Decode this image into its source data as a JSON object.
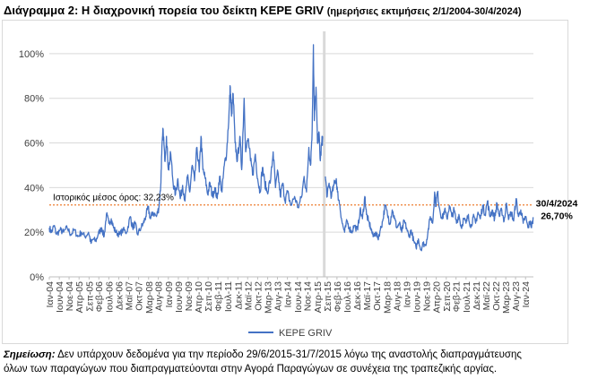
{
  "title": {
    "main": "Διάγραμμα 2: Η διαχρονική πορεία του δείκτη ΚΕΡΕ GRIV",
    "sub": "(ημερήσιες εκτιμήσεις 2/1/2004-30/4/2024)"
  },
  "note": {
    "label": "Σημείωση:",
    "text_line1": "Δεν υπάρχουν δεδομένα για την περίοδο 29/6/2015-31/7/2015 λόγω της αναστολής διαπραγμάτευσης",
    "text_line2": "όλων των παραγώγων που διαπραγματεύονται στην Αγορά Παραγώγων σε συνέχεια της τραπεζικής αργίας."
  },
  "colors": {
    "series": "#4472c4",
    "mean_line": "#ed7d31",
    "gap_band": "#d9d9d9",
    "grid": "#d9d9d9"
  },
  "chart_data": {
    "type": "line",
    "title": "Διάγραμμα 2: Η διαχρονική πορεία του δείκτη ΚΕΡΕ GRIV",
    "xlabel": "",
    "ylabel": "",
    "ylim": [
      0,
      1.1
    ],
    "yticks": [
      "0%",
      "20%",
      "40%",
      "60%",
      "80%",
      "100%"
    ],
    "ytick_values": [
      0,
      0.2,
      0.4,
      0.6,
      0.8,
      1.0
    ],
    "x_range": [
      2004.0,
      2024.33
    ],
    "x_ticks": [
      {
        "label": "Ιαν-04",
        "t": 2004.0
      },
      {
        "label": "Ιουν-04",
        "t": 2004.42
      },
      {
        "label": "Νοε-04",
        "t": 2004.83
      },
      {
        "label": "Απρ-05",
        "t": 2005.25
      },
      {
        "label": "Σεπ-05",
        "t": 2005.67
      },
      {
        "label": "Φεβ-06",
        "t": 2006.08
      },
      {
        "label": "Ιουλ-06",
        "t": 2006.5
      },
      {
        "label": "Δεκ-06",
        "t": 2006.92
      },
      {
        "label": "Μαϊ-07",
        "t": 2007.33
      },
      {
        "label": "Οκτ-07",
        "t": 2007.75
      },
      {
        "label": "Μαρ-08",
        "t": 2008.17
      },
      {
        "label": "Αυγ-08",
        "t": 2008.58
      },
      {
        "label": "Ιαν-09",
        "t": 2009.0
      },
      {
        "label": "Ιουν-09",
        "t": 2009.42
      },
      {
        "label": "Νοε-09",
        "t": 2009.83
      },
      {
        "label": "Απρ-10",
        "t": 2010.25
      },
      {
        "label": "Σεπ-10",
        "t": 2010.67
      },
      {
        "label": "Φεβ-11",
        "t": 2011.08
      },
      {
        "label": "Ιουλ-11",
        "t": 2011.5
      },
      {
        "label": "Δεκ-11",
        "t": 2011.92
      },
      {
        "label": "Μαϊ-12",
        "t": 2012.33
      },
      {
        "label": "Οκτ-12",
        "t": 2012.75
      },
      {
        "label": "Μαρ-13",
        "t": 2013.17
      },
      {
        "label": "Αυγ-13",
        "t": 2013.58
      },
      {
        "label": "Ιαν-14",
        "t": 2014.0
      },
      {
        "label": "Ιουν-14",
        "t": 2014.42
      },
      {
        "label": "Νοε-14",
        "t": 2014.83
      },
      {
        "label": "Απρ-15",
        "t": 2015.25
      },
      {
        "label": "Σεπ-15",
        "t": 2015.67
      },
      {
        "label": "Φεβ-16",
        "t": 2016.08
      },
      {
        "label": "Ιουλ-16",
        "t": 2016.5
      },
      {
        "label": "Δεκ-16",
        "t": 2016.92
      },
      {
        "label": "Μαϊ-17",
        "t": 2017.33
      },
      {
        "label": "Οκτ-17",
        "t": 2017.75
      },
      {
        "label": "Μαρ-18",
        "t": 2018.17
      },
      {
        "label": "Αυγ-18",
        "t": 2018.58
      },
      {
        "label": "Ιαν-19",
        "t": 2019.0
      },
      {
        "label": "Ιουν-19",
        "t": 2019.42
      },
      {
        "label": "Νοε-19",
        "t": 2019.83
      },
      {
        "label": "Απρ-20",
        "t": 2020.25
      },
      {
        "label": "Σεπ-20",
        "t": 2020.67
      },
      {
        "label": "Φεβ-21",
        "t": 2021.08
      },
      {
        "label": "Ιουλ-21",
        "t": 2021.5
      },
      {
        "label": "Δεκ-21",
        "t": 2021.92
      },
      {
        "label": "Μαϊ-22",
        "t": 2022.33
      },
      {
        "label": "Οκτ-22",
        "t": 2022.75
      },
      {
        "label": "Μαρ-23",
        "t": 2023.17
      },
      {
        "label": "Αυγ-23",
        "t": 2023.58
      },
      {
        "label": "Ιαν-24",
        "t": 2024.0
      }
    ],
    "gap": {
      "from": 2015.49,
      "to": 2015.58
    },
    "series": [
      {
        "name": "ΚΕΡΕ GRIV",
        "points": [
          [
            2004.0,
            0.22
          ],
          [
            2004.1,
            0.2
          ],
          [
            2004.2,
            0.23
          ],
          [
            2004.3,
            0.19
          ],
          [
            2004.45,
            0.21
          ],
          [
            2004.6,
            0.2
          ],
          [
            2004.75,
            0.22
          ],
          [
            2004.9,
            0.19
          ],
          [
            2005.05,
            0.21
          ],
          [
            2005.2,
            0.18
          ],
          [
            2005.35,
            0.2
          ],
          [
            2005.5,
            0.18
          ],
          [
            2005.65,
            0.2
          ],
          [
            2005.75,
            0.15
          ],
          [
            2005.85,
            0.17
          ],
          [
            2005.95,
            0.16
          ],
          [
            2006.05,
            0.19
          ],
          [
            2006.2,
            0.22
          ],
          [
            2006.3,
            0.18
          ],
          [
            2006.4,
            0.28
          ],
          [
            2006.5,
            0.24
          ],
          [
            2006.6,
            0.26
          ],
          [
            2006.7,
            0.22
          ],
          [
            2006.8,
            0.2
          ],
          [
            2006.95,
            0.19
          ],
          [
            2007.1,
            0.21
          ],
          [
            2007.25,
            0.2
          ],
          [
            2007.4,
            0.27
          ],
          [
            2007.5,
            0.22
          ],
          [
            2007.6,
            0.24
          ],
          [
            2007.7,
            0.19
          ],
          [
            2007.85,
            0.22
          ],
          [
            2007.95,
            0.24
          ],
          [
            2008.05,
            0.27
          ],
          [
            2008.15,
            0.31
          ],
          [
            2008.25,
            0.26
          ],
          [
            2008.35,
            0.29
          ],
          [
            2008.5,
            0.27
          ],
          [
            2008.6,
            0.31
          ],
          [
            2008.68,
            0.41
          ],
          [
            2008.72,
            0.55
          ],
          [
            2008.78,
            0.66
          ],
          [
            2008.85,
            0.52
          ],
          [
            2008.92,
            0.63
          ],
          [
            2009.0,
            0.48
          ],
          [
            2009.1,
            0.55
          ],
          [
            2009.2,
            0.42
          ],
          [
            2009.3,
            0.37
          ],
          [
            2009.4,
            0.44
          ],
          [
            2009.5,
            0.35
          ],
          [
            2009.6,
            0.41
          ],
          [
            2009.7,
            0.34
          ],
          [
            2009.8,
            0.45
          ],
          [
            2009.9,
            0.38
          ],
          [
            2010.0,
            0.5
          ],
          [
            2010.1,
            0.43
          ],
          [
            2010.2,
            0.58
          ],
          [
            2010.3,
            0.47
          ],
          [
            2010.37,
            0.63
          ],
          [
            2010.45,
            0.48
          ],
          [
            2010.55,
            0.44
          ],
          [
            2010.65,
            0.37
          ],
          [
            2010.75,
            0.42
          ],
          [
            2010.85,
            0.36
          ],
          [
            2010.95,
            0.4
          ],
          [
            2011.05,
            0.35
          ],
          [
            2011.15,
            0.45
          ],
          [
            2011.25,
            0.38
          ],
          [
            2011.35,
            0.5
          ],
          [
            2011.45,
            0.56
          ],
          [
            2011.55,
            0.74
          ],
          [
            2011.6,
            0.85
          ],
          [
            2011.65,
            0.72
          ],
          [
            2011.72,
            0.82
          ],
          [
            2011.8,
            0.6
          ],
          [
            2011.9,
            0.52
          ],
          [
            2012.0,
            0.63
          ],
          [
            2012.08,
            0.48
          ],
          [
            2012.18,
            0.8
          ],
          [
            2012.25,
            0.56
          ],
          [
            2012.35,
            0.62
          ],
          [
            2012.45,
            0.52
          ],
          [
            2012.55,
            0.46
          ],
          [
            2012.65,
            0.55
          ],
          [
            2012.75,
            0.44
          ],
          [
            2012.85,
            0.38
          ],
          [
            2012.95,
            0.49
          ],
          [
            2013.05,
            0.42
          ],
          [
            2013.15,
            0.38
          ],
          [
            2013.3,
            0.44
          ],
          [
            2013.4,
            0.56
          ],
          [
            2013.5,
            0.4
          ],
          [
            2013.6,
            0.47
          ],
          [
            2013.7,
            0.36
          ],
          [
            2013.8,
            0.42
          ],
          [
            2013.9,
            0.34
          ],
          [
            2014.0,
            0.38
          ],
          [
            2014.15,
            0.32
          ],
          [
            2014.3,
            0.36
          ],
          [
            2014.45,
            0.31
          ],
          [
            2014.6,
            0.36
          ],
          [
            2014.7,
            0.45
          ],
          [
            2014.8,
            0.38
          ],
          [
            2014.9,
            0.58
          ],
          [
            2014.97,
            0.5
          ],
          [
            2015.04,
            0.66
          ],
          [
            2015.09,
            1.04
          ],
          [
            2015.13,
            0.7
          ],
          [
            2015.2,
            0.85
          ],
          [
            2015.26,
            0.6
          ],
          [
            2015.32,
            0.65
          ],
          [
            2015.38,
            0.52
          ],
          [
            2015.44,
            0.6
          ],
          [
            2015.48,
            0.62
          ],
          [
            2015.59,
            0.45
          ],
          [
            2015.67,
            0.36
          ],
          [
            2015.75,
            0.42
          ],
          [
            2015.85,
            0.36
          ],
          [
            2015.95,
            0.41
          ],
          [
            2016.05,
            0.44
          ],
          [
            2016.1,
            0.38
          ],
          [
            2016.2,
            0.32
          ],
          [
            2016.3,
            0.24
          ],
          [
            2016.4,
            0.2
          ],
          [
            2016.5,
            0.25
          ],
          [
            2016.6,
            0.22
          ],
          [
            2016.7,
            0.2
          ],
          [
            2016.8,
            0.23
          ],
          [
            2016.95,
            0.21
          ],
          [
            2017.05,
            0.3
          ],
          [
            2017.15,
            0.26
          ],
          [
            2017.25,
            0.36
          ],
          [
            2017.32,
            0.28
          ],
          [
            2017.4,
            0.25
          ],
          [
            2017.5,
            0.22
          ],
          [
            2017.6,
            0.18
          ],
          [
            2017.7,
            0.2
          ],
          [
            2017.8,
            0.17
          ],
          [
            2017.9,
            0.21
          ],
          [
            2018.0,
            0.25
          ],
          [
            2018.1,
            0.32
          ],
          [
            2018.2,
            0.28
          ],
          [
            2018.3,
            0.24
          ],
          [
            2018.4,
            0.3
          ],
          [
            2018.5,
            0.26
          ],
          [
            2018.6,
            0.22
          ],
          [
            2018.7,
            0.24
          ],
          [
            2018.8,
            0.2
          ],
          [
            2018.9,
            0.25
          ],
          [
            2019.0,
            0.22
          ],
          [
            2019.1,
            0.18
          ],
          [
            2019.2,
            0.21
          ],
          [
            2019.3,
            0.16
          ],
          [
            2019.4,
            0.13
          ],
          [
            2019.5,
            0.17
          ],
          [
            2019.6,
            0.12
          ],
          [
            2019.7,
            0.15
          ],
          [
            2019.8,
            0.14
          ],
          [
            2019.9,
            0.2
          ],
          [
            2020.0,
            0.27
          ],
          [
            2020.1,
            0.24
          ],
          [
            2020.18,
            0.38
          ],
          [
            2020.23,
            0.32
          ],
          [
            2020.3,
            0.38
          ],
          [
            2020.4,
            0.3
          ],
          [
            2020.5,
            0.26
          ],
          [
            2020.6,
            0.3
          ],
          [
            2020.7,
            0.26
          ],
          [
            2020.8,
            0.32
          ],
          [
            2020.9,
            0.27
          ],
          [
            2021.0,
            0.3
          ],
          [
            2021.1,
            0.24
          ],
          [
            2021.2,
            0.28
          ],
          [
            2021.3,
            0.22
          ],
          [
            2021.4,
            0.26
          ],
          [
            2021.5,
            0.24
          ],
          [
            2021.6,
            0.28
          ],
          [
            2021.7,
            0.22
          ],
          [
            2021.8,
            0.27
          ],
          [
            2021.9,
            0.24
          ],
          [
            2022.0,
            0.29
          ],
          [
            2022.1,
            0.26
          ],
          [
            2022.2,
            0.32
          ],
          [
            2022.3,
            0.28
          ],
          [
            2022.4,
            0.34
          ],
          [
            2022.5,
            0.27
          ],
          [
            2022.6,
            0.3
          ],
          [
            2022.7,
            0.26
          ],
          [
            2022.8,
            0.33
          ],
          [
            2022.9,
            0.27
          ],
          [
            2023.0,
            0.3
          ],
          [
            2023.1,
            0.25
          ],
          [
            2023.2,
            0.33
          ],
          [
            2023.3,
            0.26
          ],
          [
            2023.4,
            0.29
          ],
          [
            2023.5,
            0.25
          ],
          [
            2023.6,
            0.35
          ],
          [
            2023.7,
            0.27
          ],
          [
            2023.8,
            0.3
          ],
          [
            2023.9,
            0.24
          ],
          [
            2024.0,
            0.27
          ],
          [
            2024.1,
            0.22
          ],
          [
            2024.2,
            0.25
          ],
          [
            2024.25,
            0.22
          ],
          [
            2024.33,
            0.267
          ]
        ]
      }
    ],
    "mean": {
      "value": 0.3223,
      "label": "Ιστορικός μέσος όρος: 32,23%"
    },
    "end_annotation": {
      "date": "30/4/2024",
      "value_label": "26,70%",
      "value": 0.267
    },
    "legend": {
      "position": "bottom-center",
      "label": "ΚΕΡΕ GRIV"
    }
  }
}
